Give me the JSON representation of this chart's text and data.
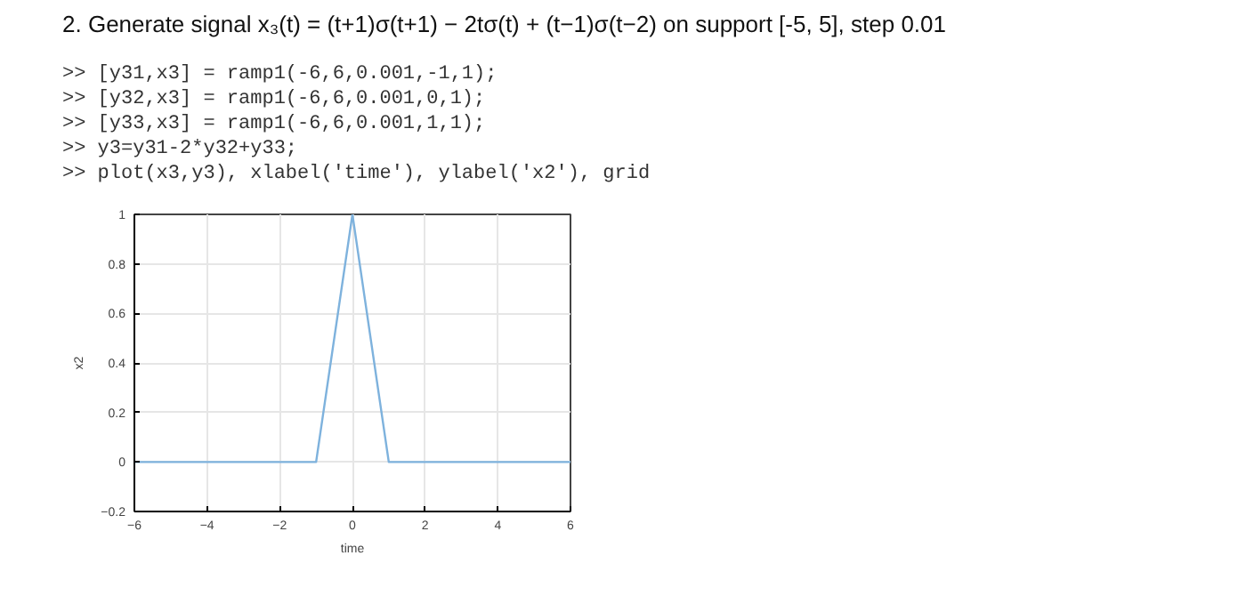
{
  "chart_data": {
    "type": "line",
    "title": "2. Generate signal x₃(t) = (t+1)σ(t+1) − 2tσ(t) + (t−1)σ(t−2) on support [-5, 5], step 0.01",
    "annotations": [
      ">> [y31,x3] = ramp1(-6,6,0.001,-1,1);",
      ">> [y32,x3] = ramp1(-6,6,0.001,0,1);",
      ">> [y33,x3] = ramp1(-6,6,0.001,1,1);",
      ">> y3=y31-2*y32+y33;",
      ">> plot(x3,y3), xlabel('time'), ylabel('x2'), grid"
    ],
    "xlabel": "time",
    "ylabel": "x2",
    "x": [
      -6,
      -1,
      0,
      1,
      6
    ],
    "series": [
      {
        "color": "#7eb2dd",
        "values": [
          0,
          0,
          1,
          0,
          0
        ]
      }
    ],
    "xlim": [
      -6,
      6
    ],
    "xticks": [
      -6,
      -4,
      -2,
      0,
      2,
      4,
      6
    ],
    "ylim": [
      -0.2,
      1
    ],
    "yticks": [
      -0.2,
      0,
      0.2,
      0.4,
      0.6,
      0.8,
      1
    ],
    "grid": true
  }
}
